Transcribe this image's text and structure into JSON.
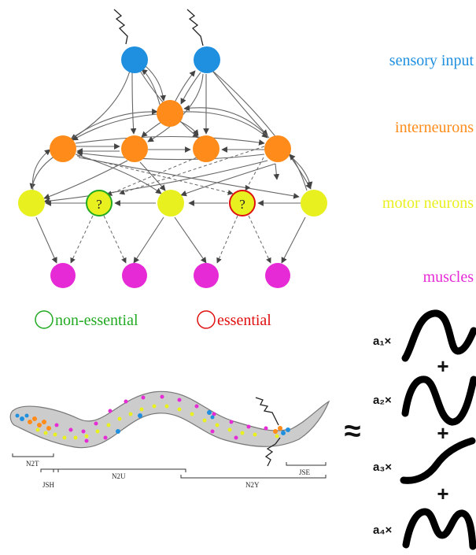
{
  "legend": {
    "sensory": "sensory input",
    "interneurons": "interneurons",
    "motor": "motor neurons",
    "muscles": "muscles",
    "nonessential": "non-essential",
    "essential": "essential"
  },
  "unknown_mark": "?",
  "approx_symbol": "≈",
  "plus_symbol": "+",
  "coefficients": [
    "a₁×",
    "a₂×",
    "a₃×",
    "a₄×"
  ],
  "worm_segments": [
    "N2T",
    "JSH",
    "N2U",
    "N2Y",
    "JSE"
  ],
  "colors": {
    "sensory": "#1f8fe0",
    "interneuron": "#ff8c1a",
    "motor": "#e8f020",
    "muscle": "#e62ad6",
    "nonessential": "#22aa22",
    "essential": "#e01010",
    "edge": "#666666"
  }
}
